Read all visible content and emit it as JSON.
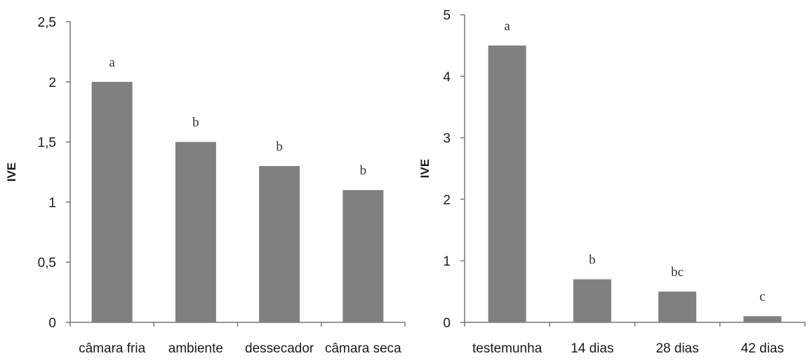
{
  "chart_data": [
    {
      "type": "bar",
      "categories": [
        "câmara fria",
        "ambiente",
        "dessecador",
        "câmara seca"
      ],
      "values": [
        2.0,
        1.5,
        1.3,
        1.1
      ],
      "data_labels": [
        "a",
        "b",
        "b",
        "b"
      ],
      "title": "",
      "xlabel": "",
      "ylabel": "IVE",
      "ylim": [
        0,
        2.5
      ],
      "yticks": [
        "0",
        "0,5",
        "1",
        "1,5",
        "2",
        "2,5"
      ],
      "bar_color": "#808080",
      "grid": false
    },
    {
      "type": "bar",
      "categories": [
        "testemunha",
        "14 dias",
        "28 dias",
        "42 dias"
      ],
      "values": [
        4.5,
        0.7,
        0.5,
        0.1
      ],
      "data_labels": [
        "a",
        "b",
        "bc",
        "c"
      ],
      "title": "",
      "xlabel": "",
      "ylabel": "IVE",
      "ylim": [
        0,
        5
      ],
      "yticks": [
        "0",
        "1",
        "2",
        "3",
        "4",
        "5"
      ],
      "bar_color": "#808080",
      "grid": false
    }
  ]
}
